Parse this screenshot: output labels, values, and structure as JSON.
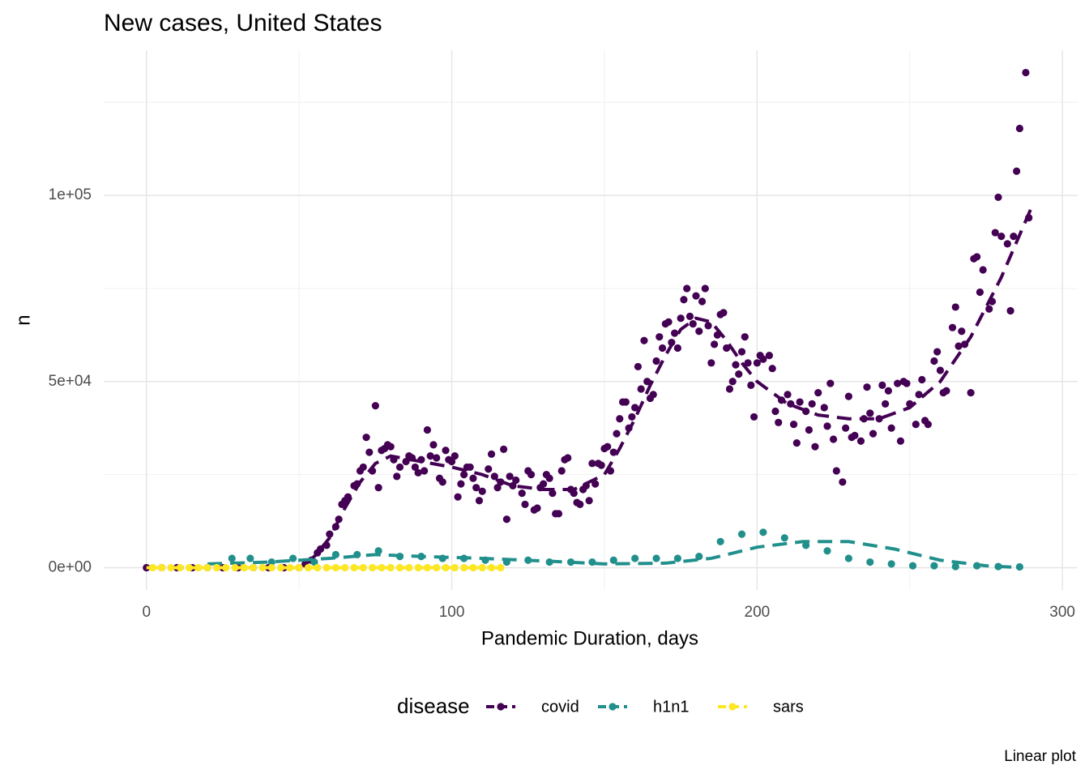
{
  "chart_data": {
    "type": "scatter",
    "title": "New cases, United States",
    "xlabel": "Pandemic Duration, days",
    "ylabel": "n",
    "caption": "Linear plot",
    "legend_title": "disease",
    "legend_position": "bottom",
    "grid": true,
    "xlim": [
      -14,
      305
    ],
    "ylim": [
      -6000,
      139000
    ],
    "xticks": [
      0,
      100,
      200,
      300
    ],
    "yticks": [
      {
        "value": 0,
        "label": "0e+00"
      },
      {
        "value": 50000,
        "label": "5e+04"
      },
      {
        "value": 100000,
        "label": "1e+05"
      }
    ],
    "xminor": [
      50,
      150,
      250
    ],
    "yminor": [
      25000,
      75000,
      125000
    ],
    "series": [
      {
        "name": "covid",
        "color": "#440154",
        "x": [
          0,
          5,
          10,
          15,
          20,
          25,
          30,
          35,
          40,
          45,
          50,
          52,
          54,
          56,
          57,
          59,
          60,
          62,
          63,
          64,
          65,
          66,
          68,
          69,
          70,
          71,
          72,
          73,
          74,
          75,
          76,
          77,
          78,
          79,
          80,
          81,
          82,
          83,
          85,
          86,
          87,
          88,
          89,
          90,
          91,
          92,
          93,
          94,
          95,
          96,
          97,
          98,
          99,
          100,
          101,
          102,
          103,
          104,
          105,
          106,
          107,
          108,
          109,
          110,
          112,
          113,
          114,
          115,
          116,
          117,
          118,
          119,
          120,
          121,
          123,
          124,
          125,
          126,
          127,
          128,
          129,
          130,
          131,
          132,
          133,
          134,
          135,
          136,
          137,
          138,
          139,
          140,
          141,
          142,
          143,
          144,
          145,
          146,
          147,
          148,
          149,
          150,
          151,
          152,
          153,
          154,
          155,
          156,
          157,
          158,
          159,
          160,
          161,
          162,
          163,
          164,
          165,
          166,
          167,
          168,
          169,
          170,
          171,
          172,
          173,
          174,
          175,
          176,
          177,
          178,
          179,
          180,
          181,
          182,
          183,
          184,
          185,
          186,
          187,
          188,
          189,
          190,
          191,
          192,
          193,
          194,
          195,
          196,
          197,
          198,
          199,
          200,
          201,
          202,
          204,
          205,
          206,
          207,
          208,
          210,
          211,
          212,
          213,
          214,
          216,
          217,
          218,
          219,
          220,
          222,
          223,
          224,
          225,
          226,
          228,
          229,
          230,
          231,
          232,
          234,
          235,
          236,
          237,
          238,
          240,
          241,
          242,
          243,
          244,
          246,
          247,
          248,
          249,
          250,
          252,
          253,
          254,
          255,
          256,
          258,
          259,
          260,
          261,
          262,
          264,
          265,
          266,
          267,
          268,
          270,
          271,
          272,
          273,
          274,
          276,
          277,
          278,
          279,
          280,
          282,
          283,
          284,
          285,
          286,
          288,
          289
        ],
        "values": [
          0,
          0,
          0,
          0,
          0,
          0,
          0,
          0,
          0,
          0,
          0,
          1000,
          2000,
          4000,
          5000,
          6000,
          9000,
          11000,
          13000,
          17000,
          18000,
          19000,
          22000,
          22500,
          26000,
          27000,
          35000,
          31000,
          26000,
          43500,
          21500,
          31500,
          32000,
          33000,
          32500,
          29000,
          24500,
          27000,
          28500,
          30000,
          29500,
          27000,
          25500,
          29000,
          26000,
          37000,
          30000,
          33000,
          29500,
          24000,
          23000,
          31500,
          29000,
          28500,
          30000,
          19000,
          22500,
          25000,
          27000,
          27000,
          24000,
          21500,
          18000,
          20500,
          26500,
          30500,
          24500,
          21500,
          23000,
          31800,
          13000,
          24500,
          22000,
          23500,
          20000,
          17000,
          26000,
          25000,
          15500,
          16000,
          21500,
          22500,
          25000,
          24000,
          20000,
          14500,
          14500,
          26000,
          29000,
          29500,
          21000,
          20000,
          17500,
          17000,
          21000,
          22000,
          18000,
          28000,
          22500,
          28000,
          27500,
          32000,
          32500,
          26000,
          31000,
          36000,
          40000,
          44500,
          44500,
          37500,
          40500,
          43000,
          54000,
          48000,
          61000,
          50000,
          45500,
          46500,
          55500,
          62000,
          59000,
          65500,
          66000,
          60500,
          63000,
          59000,
          67000,
          72000,
          75000,
          67500,
          65500,
          73000,
          63500,
          71500,
          75000,
          65000,
          55000,
          60000,
          62500,
          68000,
          68500,
          59000,
          48000,
          50000,
          54500,
          52000,
          58000,
          62000,
          55000,
          49000,
          40500,
          55000,
          57000,
          56000,
          57000,
          53500,
          42000,
          39000,
          45000,
          46500,
          44000,
          38500,
          33500,
          44500,
          42000,
          37000,
          44000,
          32500,
          47000,
          43000,
          38000,
          49500,
          34500,
          26000,
          23000,
          37500,
          46000,
          35000,
          35500,
          34000,
          40000,
          48500,
          41500,
          36000,
          40000,
          49000,
          44000,
          47500,
          37500,
          49500,
          34000,
          50000,
          49500,
          44000,
          38500,
          46500,
          50500,
          39500,
          38500,
          55500,
          58000,
          53000,
          47000,
          47500,
          64500,
          70000,
          59500,
          63500,
          60000,
          47000,
          83000,
          83500,
          74000,
          80000,
          69500,
          71500,
          90000,
          99500,
          89000,
          87000,
          69000,
          89000,
          106500,
          118000,
          133000,
          94000
        ],
        "trend_x": [
          0,
          50,
          55,
          60,
          65,
          70,
          75,
          80,
          90,
          100,
          110,
          120,
          130,
          140,
          150,
          155,
          160,
          165,
          170,
          175,
          180,
          185,
          190,
          195,
          200,
          205,
          210,
          220,
          230,
          240,
          250,
          260,
          270,
          280,
          290
        ],
        "trend": [
          0,
          0,
          3000,
          8000,
          16000,
          23000,
          28000,
          30000,
          28500,
          27000,
          25000,
          22000,
          21000,
          21000,
          25000,
          32000,
          40000,
          49000,
          57000,
          64000,
          67000,
          66000,
          61000,
          55000,
          50000,
          47000,
          44000,
          41000,
          40000,
          40000,
          43000,
          50000,
          62000,
          78000,
          97000
        ]
      },
      {
        "name": "h1n1",
        "color": "#21908C",
        "x": [
          28,
          34,
          41,
          48,
          55,
          62,
          69,
          76,
          83,
          90,
          97,
          104,
          111,
          118,
          125,
          132,
          139,
          146,
          153,
          160,
          167,
          174,
          181,
          188,
          195,
          202,
          209,
          216,
          223,
          230,
          237,
          244,
          251,
          258,
          265,
          272,
          279,
          286
        ],
        "values": [
          2500,
          2500,
          1500,
          2500,
          1500,
          3500,
          3500,
          4500,
          3000,
          3000,
          2500,
          2500,
          2000,
          1500,
          2000,
          1500,
          1500,
          1500,
          2000,
          2500,
          2500,
          2500,
          3000,
          7000,
          9000,
          9500,
          8000,
          6000,
          4500,
          2500,
          1500,
          1000,
          500,
          500,
          300,
          500,
          300,
          200
        ],
        "trend_x": [
          20,
          40,
          60,
          75,
          90,
          110,
          130,
          150,
          170,
          185,
          200,
          215,
          230,
          245,
          260,
          275,
          287
        ],
        "trend": [
          1000,
          1500,
          2500,
          3500,
          3000,
          2500,
          1800,
          1000,
          1200,
          2500,
          5500,
          7000,
          7000,
          5000,
          2000,
          500,
          0
        ]
      },
      {
        "name": "sars",
        "color": "#FDE725",
        "x": [
          2,
          5,
          8,
          11,
          14,
          17,
          20,
          23,
          26,
          29,
          32,
          35,
          38,
          41,
          44,
          47,
          50,
          53,
          56,
          59,
          62,
          65,
          68,
          71,
          74,
          77,
          80,
          83,
          86,
          89,
          92,
          95,
          98,
          101,
          104,
          107,
          110,
          113,
          116
        ],
        "values": [
          0,
          0,
          0,
          0,
          0,
          0,
          0,
          0,
          0,
          0,
          0,
          0,
          0,
          0,
          0,
          0,
          0,
          0,
          0,
          0,
          0,
          0,
          0,
          0,
          0,
          0,
          0,
          0,
          0,
          0,
          0,
          0,
          0,
          0,
          0,
          0,
          0,
          0,
          0
        ],
        "trend_x": [
          0,
          117
        ],
        "trend": [
          0,
          0
        ]
      }
    ]
  }
}
